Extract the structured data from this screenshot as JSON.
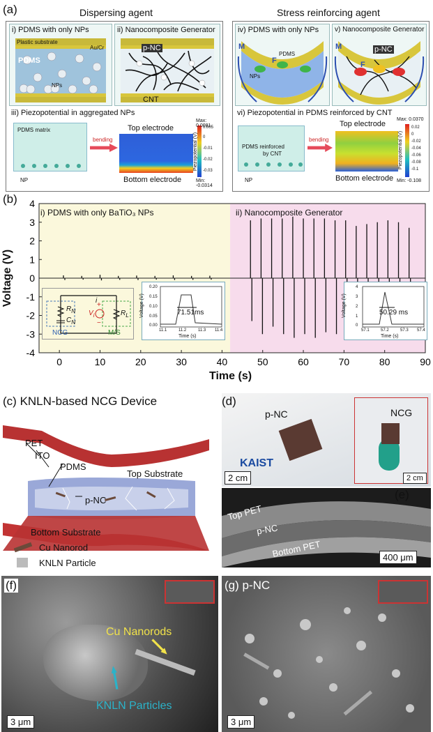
{
  "panel_a": {
    "label": "(a)",
    "left_title": "Dispersing agent",
    "right_title": "Stress reinforcing agent",
    "sub_i": "i) PDMS with only NPs",
    "sub_ii": "ii) Nanocomposite Generator",
    "sub_iii": "iii) Piezopotential in aggregated NPs",
    "sub_iv": "iv) PDMS with only NPs",
    "sub_v": "v) Nanocomposite Generator",
    "sub_vi": "vi) Piezopotential in PDMS reinforced by CNT",
    "i_labels": {
      "substrate": "Plastic substrate",
      "electrode": "Au/Cr",
      "pdms": "PDMS",
      "nps": "NPs"
    },
    "ii_labels": {
      "pnc": "p-NC",
      "cnt": "CNT"
    },
    "iii_labels": {
      "matrix": "PDMS matrix",
      "np": "NP",
      "bending": "bending",
      "top": "Top electrode",
      "bottom": "Bottom electrode",
      "cbar_title": "Piezopotential (V)",
      "max": "Max: 0.0081",
      "min": "Min: -0.0314",
      "ticks": [
        "0.005",
        "0",
        "-0.01",
        "-0.02",
        "-0.03"
      ]
    },
    "iv_labels": {
      "m": "M",
      "f": "F",
      "pdms": "PDMS",
      "nps": "NPs"
    },
    "v_labels": {
      "m": "M",
      "pnc": "p-NC",
      "f": "F"
    },
    "vi_labels": {
      "matrix": "PDMS reinforced",
      "matrix2": "by CNT",
      "np": "NP",
      "bending": "bending",
      "top": "Top electrode",
      "bottom": "Bottom electrode",
      "cbar_title": "Piezopotential (V)",
      "max": "Max: 0.0370",
      "min": "Min: -0.108",
      "ticks": [
        "0.02",
        "0",
        "-0.02",
        "-0.04",
        "-0.06",
        "-0.08",
        "-0.1"
      ]
    }
  },
  "panel_b": {
    "label": "(b)",
    "ylabel": "Voltage (V)",
    "xlabel": "Time (s)",
    "left_title": "i) PDMS with only BaTiO₃ NPs",
    "right_title": "ii) Nanocomposite Generator",
    "circuit": {
      "rn": "R",
      "rn_sub": "N",
      "cn": "C",
      "cn_sub": "N",
      "vi": "V",
      "vi_sub": "i",
      "rl": "R",
      "rl_sub": "L",
      "i": "i",
      "plus": "+",
      "minus": "−",
      "ncg": "NCG",
      "ms": "M/S"
    },
    "inset_left": {
      "ylabel": "Voltage (V)",
      "xlabel": "Time (s)",
      "width": "71.51ms",
      "yticks": [
        "0.20",
        "0.15",
        "0.10",
        "0.05",
        "0.00"
      ],
      "xticks": [
        "11.1",
        "11.2",
        "11.3",
        "11.4"
      ]
    },
    "inset_right": {
      "ylabel": "Voltage (V)",
      "xlabel": "Time (s)",
      "width": "50.29 ms",
      "yticks": [
        "4",
        "3",
        "2",
        "1",
        "0"
      ],
      "xticks": [
        "57.1",
        "57.2",
        "57.3",
        "57.4"
      ]
    }
  },
  "chart_data": {
    "type": "line",
    "title": "",
    "xlabel": "Time (s)",
    "ylabel": "Voltage (V)",
    "xlim": [
      -5,
      90
    ],
    "ylim": [
      -4,
      4
    ],
    "xticks": [
      0,
      10,
      20,
      30,
      40,
      50,
      60,
      70,
      80,
      90
    ],
    "yticks": [
      -4,
      -3,
      -2,
      -1,
      0,
      1,
      2,
      3,
      4
    ],
    "series": [
      {
        "name": "i) PDMS with only BaTiO₃ NPs",
        "x": [
          1,
          5.5,
          10,
          14.5,
          19,
          23.5,
          28,
          32.5,
          37
        ],
        "peak_pos": [
          0.15,
          0.12,
          0.18,
          0.12,
          0.14,
          0.12,
          0.15,
          0.12,
          0.13
        ],
        "peak_neg": [
          -0.1,
          -0.08,
          -0.12,
          -0.09,
          -0.1,
          -0.08,
          -0.1,
          -0.09,
          -0.08
        ]
      },
      {
        "name": "ii) Nanocomposite Generator",
        "x": [
          47,
          49.6,
          52.2,
          54.8,
          57.4,
          60,
          62.6,
          65.2,
          67.8,
          70.4,
          73,
          75.6,
          78.2,
          80.8,
          83.4,
          86
        ],
        "peak_pos": [
          3.1,
          3.2,
          3.2,
          3.2,
          3.3,
          3.2,
          3.2,
          3.2,
          3.1,
          3.1,
          2.8,
          2.9,
          3.0,
          3.1,
          3.0,
          2.7
        ],
        "peak_neg": [
          -2.3,
          -3.0,
          -2.6,
          -3.0,
          -3.2,
          -3.0,
          -3.2,
          -2.9,
          -3.0,
          -3.0,
          -2.5,
          -2.8,
          -2.6,
          -2.5,
          -2.7,
          -2.3
        ]
      }
    ]
  },
  "panel_c": {
    "label": "(c)",
    "title": "KNLN-based NCG Device",
    "pet": "PET",
    "ito": "ITO",
    "pdms": "PDMS",
    "top": "Top Substrate",
    "pnc": "p-NC",
    "bottom": "Bottom Substrate",
    "legend_cu": "Cu Nanorod",
    "legend_knln": "KNLN Particle"
  },
  "panel_d": {
    "label": "(d)",
    "pnc": "p-NC",
    "ncg": "NCG",
    "scale1": "2 cm",
    "scale2": "2 cm",
    "logo": "KAIST"
  },
  "panel_e": {
    "label": "(e)",
    "top": "Top PET",
    "pnc": "p-NC",
    "bottom": "Bottom PET",
    "scale": "400 μm"
  },
  "panel_f": {
    "label": "(f)",
    "cu": "Cu Nanorods",
    "knln": "KNLN Particles",
    "scale": "3 μm"
  },
  "panel_g": {
    "label": "(g)",
    "pnc": "p-NC",
    "scale": "3 μm"
  },
  "colors": {
    "yellow_bg": "#fbf8dc",
    "pink_bg": "#f7dcec",
    "red_substrate": "#c0392b",
    "cyan_text": "#2bb3c9",
    "yellow_text": "#f1e24a"
  }
}
